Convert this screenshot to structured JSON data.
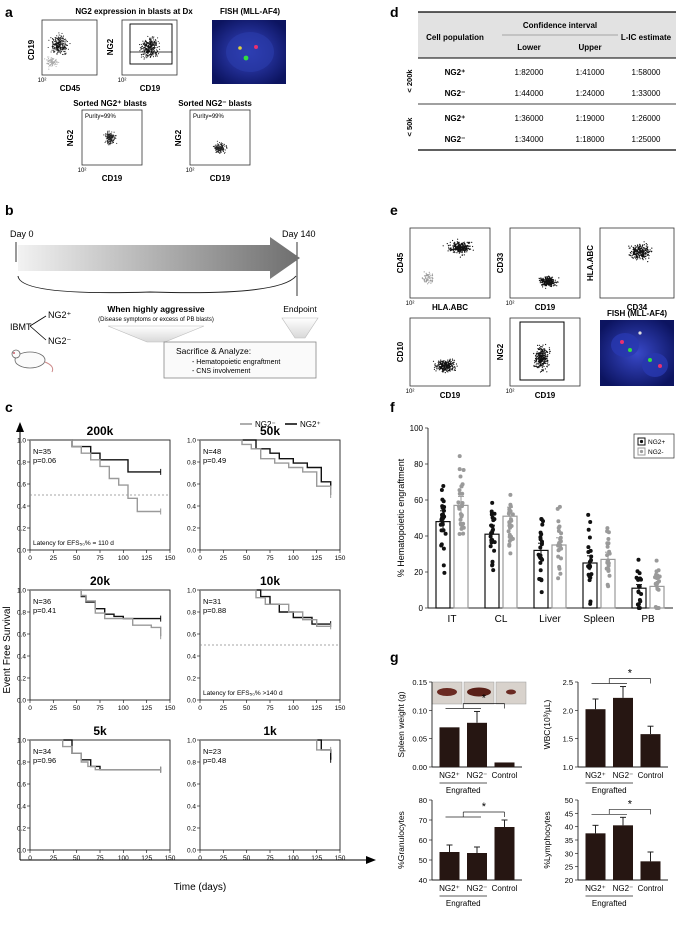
{
  "panels": {
    "a": "a",
    "b": "b",
    "c": "c",
    "d": "d",
    "e": "e",
    "f": "f",
    "g": "g"
  },
  "panel_a": {
    "title_left": "NG2 expression in blasts at Dx",
    "title_right": "FISH (MLL-AF4)",
    "plot1": {
      "ylabel": "CD19",
      "xlabel": "CD45",
      "tick_low": "10²",
      "tick_high": "10²"
    },
    "plot2": {
      "ylabel": "NG2",
      "xlabel": "CD19",
      "tick_low": "10²",
      "tick_high": "10²"
    },
    "sorted_pos_title": "Sorted NG2⁺ blasts",
    "sorted_neg_title": "Sorted NG2⁻ blasts",
    "sorted_pos": {
      "ylabel": "NG2",
      "xlabel": "CD19",
      "purity": "Purity=99%",
      "tick_low": "10²",
      "tick_high": "10²"
    },
    "sorted_neg": {
      "ylabel": "NG2",
      "xlabel": "CD19",
      "purity": "Purity=99%",
      "tick_low": "10²",
      "tick_high": "10²"
    }
  },
  "panel_b": {
    "day0": "Day 0",
    "day140": "Day 140",
    "ibmt": "IBMT",
    "ng2pos": "NG2⁺",
    "ng2neg": "NG2⁻",
    "aggressive": "When highly aggressive",
    "aggressive_sub": "(Disease symptoms or excess of PB blasts)",
    "endpoint": "Endpoint",
    "sacrifice": "Sacrifice & Analyze:",
    "item1": "- Hematopoietic engraftment",
    "item2": "- CNS involvement"
  },
  "panel_c": {
    "legend_neg": "NG2⁻",
    "legend_pos": "NG2⁺",
    "ylabel": "Event Free Survival",
    "xlabel": "Time (days)",
    "y_ticks": [
      "0.0",
      "0.2",
      "0.4",
      "0.6",
      "0.8",
      "1.0"
    ],
    "x_ticks": [
      "0",
      "25",
      "50",
      "75",
      "100",
      "125",
      "150"
    ],
    "plots": [
      {
        "title": "200k",
        "n": "N=35",
        "p": "p=0.06",
        "note": "Latency for EFS₅₀% = 110 d"
      },
      {
        "title": "50k",
        "n": "N=48",
        "p": "p=0.49",
        "note": ""
      },
      {
        "title": "20k",
        "n": "N=36",
        "p": "p=0.41",
        "note": ""
      },
      {
        "title": "10k",
        "n": "N=31",
        "p": "p=0.88",
        "note": "Latency for EFS₅₀% >140 d"
      },
      {
        "title": "5k",
        "n": "N=34",
        "p": "p=0.96",
        "note": ""
      },
      {
        "title": "1k",
        "n": "N=23",
        "p": "p=0.48",
        "note": ""
      }
    ]
  },
  "chart_data": [
    {
      "type": "line",
      "title": "200k",
      "xlim": [
        0,
        150
      ],
      "ylim": [
        0,
        1
      ],
      "series": [
        {
          "name": "NG2⁺",
          "x": [
            0,
            35,
            45,
            55,
            65,
            75,
            95,
            105,
            140
          ],
          "y": [
            1.0,
            1.0,
            0.94,
            0.94,
            0.88,
            0.82,
            0.82,
            0.71,
            0.71
          ]
        },
        {
          "name": "NG2⁻",
          "x": [
            0,
            35,
            45,
            55,
            65,
            75,
            85,
            95,
            105,
            115,
            140
          ],
          "y": [
            1.0,
            1.0,
            0.94,
            0.88,
            0.82,
            0.76,
            0.65,
            0.59,
            0.47,
            0.35,
            0.35
          ]
        }
      ]
    },
    {
      "type": "line",
      "title": "50k",
      "xlim": [
        0,
        150
      ],
      "ylim": [
        0,
        1
      ],
      "series": [
        {
          "name": "NG2⁺",
          "x": [
            0,
            50,
            60,
            75,
            85,
            100,
            115,
            130,
            140
          ],
          "y": [
            1.0,
            1.0,
            0.92,
            0.88,
            0.83,
            0.79,
            0.75,
            0.62,
            0.58
          ]
        },
        {
          "name": "NG2⁻",
          "x": [
            0,
            45,
            55,
            65,
            80,
            95,
            110,
            125,
            140
          ],
          "y": [
            1.0,
            0.96,
            0.92,
            0.83,
            0.79,
            0.75,
            0.71,
            0.58,
            0.5
          ]
        }
      ]
    },
    {
      "type": "line",
      "title": "20k",
      "xlim": [
        0,
        150
      ],
      "ylim": [
        0,
        1
      ],
      "series": [
        {
          "name": "NG2⁺",
          "x": [
            0,
            50,
            55,
            60,
            70,
            80,
            90,
            100,
            140
          ],
          "y": [
            1.0,
            1.0,
            0.94,
            0.89,
            0.83,
            0.78,
            0.76,
            0.74,
            0.74
          ]
        },
        {
          "name": "NG2⁻",
          "x": [
            0,
            48,
            55,
            60,
            70,
            80,
            95,
            110,
            130,
            140
          ],
          "y": [
            1.0,
            1.0,
            0.95,
            0.9,
            0.79,
            0.74,
            0.74,
            0.68,
            0.66,
            0.58
          ]
        }
      ]
    },
    {
      "type": "line",
      "title": "10k",
      "xlim": [
        0,
        150
      ],
      "ylim": [
        0,
        1
      ],
      "series": [
        {
          "name": "NG2⁺",
          "x": [
            0,
            55,
            65,
            75,
            85,
            100,
            120,
            140
          ],
          "y": [
            1.0,
            1.0,
            0.94,
            0.87,
            0.8,
            0.75,
            0.69,
            0.69
          ]
        },
        {
          "name": "NG2⁻",
          "x": [
            0,
            50,
            60,
            70,
            80,
            95,
            110,
            125,
            140
          ],
          "y": [
            1.0,
            1.0,
            0.93,
            0.87,
            0.87,
            0.8,
            0.73,
            0.67,
            0.67
          ]
        }
      ]
    },
    {
      "type": "line",
      "title": "5k",
      "xlim": [
        0,
        150
      ],
      "ylim": [
        0,
        1
      ],
      "series": [
        {
          "name": "NG2⁺",
          "x": [
            0,
            30,
            45,
            55,
            65,
            75,
            140
          ],
          "y": [
            1.0,
            1.0,
            0.88,
            0.82,
            0.76,
            0.73,
            0.73
          ]
        },
        {
          "name": "NG2⁻",
          "x": [
            0,
            35,
            45,
            55,
            62,
            70,
            140
          ],
          "y": [
            1.0,
            0.94,
            0.88,
            0.8,
            0.76,
            0.73,
            0.73
          ]
        }
      ]
    },
    {
      "type": "line",
      "title": "1k",
      "xlim": [
        0,
        150
      ],
      "ylim": [
        0,
        1
      ],
      "series": [
        {
          "name": "NG2⁺",
          "x": [
            0,
            120,
            130,
            140
          ],
          "y": [
            1.0,
            1.0,
            0.91,
            0.82
          ]
        },
        {
          "name": "NG2⁻",
          "x": [
            0,
            110,
            125,
            140
          ],
          "y": [
            1.0,
            1.0,
            0.91,
            0.91
          ]
        }
      ]
    },
    {
      "type": "bar",
      "ylabel": "% Hematopoietic engraftment",
      "ylim": [
        0,
        100
      ],
      "categories": [
        "IT",
        "CL",
        "Liver",
        "Spleen",
        "PB"
      ],
      "y_ticks": [
        "0",
        "20",
        "40",
        "60",
        "80",
        "100"
      ],
      "series": [
        {
          "name": "NG2+",
          "values": [
            48,
            41,
            32,
            25,
            11
          ],
          "errors": [
            6,
            5,
            4,
            4,
            2
          ]
        },
        {
          "name": "NG2-",
          "values": [
            57,
            51,
            35,
            27,
            12
          ],
          "errors": [
            5,
            5,
            4,
            4,
            2
          ]
        }
      ]
    },
    {
      "type": "bar",
      "ylabel": "Spleen weight (g)",
      "ylim": [
        0,
        0.15
      ],
      "categories": [
        "NG2⁺",
        "NG2⁻",
        "Control"
      ],
      "values": [
        0.07,
        0.078,
        0.008
      ],
      "errors": [
        0,
        0.02,
        0
      ],
      "y_ticks": [
        "0.00",
        "0.05",
        "0.10",
        "0.15"
      ],
      "sig": "*",
      "group_label": "Engrafted"
    },
    {
      "type": "bar",
      "ylabel": "WBC(10³/µL)",
      "ylim": [
        1.0,
        2.5
      ],
      "categories": [
        "NG2⁺",
        "NG2⁻",
        "Control"
      ],
      "values": [
        2.02,
        2.22,
        1.58
      ],
      "errors": [
        0.18,
        0.2,
        0.14
      ],
      "y_ticks": [
        "1.0",
        "1.5",
        "2.0",
        "2.5"
      ],
      "sig": "*",
      "group_label": "Engrafted"
    },
    {
      "type": "bar",
      "ylabel": "%Granulocytes",
      "ylim": [
        40,
        80
      ],
      "categories": [
        "NG2⁺",
        "NG2⁻",
        "Control"
      ],
      "values": [
        54,
        53.5,
        66.5
      ],
      "errors": [
        3.5,
        3,
        3.5
      ],
      "y_ticks": [
        "40",
        "50",
        "60",
        "70",
        "80"
      ],
      "sig": "*",
      "group_label": "Engrafted"
    },
    {
      "type": "bar",
      "ylabel": "%Lymphocytes",
      "ylim": [
        20,
        50
      ],
      "categories": [
        "NG2⁺",
        "NG2⁻",
        "Control"
      ],
      "values": [
        37.5,
        40.5,
        27
      ],
      "errors": [
        3,
        3,
        3.5
      ],
      "y_ticks": [
        "20",
        "25",
        "30",
        "35",
        "40",
        "45",
        "50"
      ],
      "sig": "*",
      "group_label": "Engrafted"
    }
  ],
  "panel_d": {
    "col_population": "Cell population",
    "col_ci": "Confidence interval",
    "col_lower": "Lower",
    "col_upper": "Upper",
    "col_lic": "L-IC estimate",
    "groups": [
      {
        "label": "< 200k",
        "rows": [
          {
            "pop": "NG2⁺",
            "lower": "1:82000",
            "upper": "1:41000",
            "lic": "1:58000"
          },
          {
            "pop": "NG2⁻",
            "lower": "1:44000",
            "upper": "1:24000",
            "lic": "1:33000"
          }
        ]
      },
      {
        "label": "< 50k",
        "rows": [
          {
            "pop": "NG2⁺",
            "lower": "1:36000",
            "upper": "1:19000",
            "lic": "1:26000"
          },
          {
            "pop": "NG2⁻",
            "lower": "1:34000",
            "upper": "1:18000",
            "lic": "1:25000"
          }
        ]
      }
    ]
  },
  "panel_e": {
    "p1": {
      "ylabel": "CD45",
      "xlabel": "HLA.ABC"
    },
    "p2": {
      "ylabel": "CD33",
      "xlabel": "CD19"
    },
    "p3": {
      "ylabel": "HLA.ABC",
      "xlabel": "CD34"
    },
    "p4": {
      "ylabel": "CD10",
      "xlabel": "CD19"
    },
    "p5": {
      "ylabel": "NG2",
      "xlabel": "CD19"
    },
    "fish": "FISH (MLL-AF4)",
    "tick_low": "10²",
    "tick_high": "10²"
  },
  "panel_f": {
    "legend_pos": "NG2+",
    "legend_neg": "NG2-"
  },
  "colors": {
    "ng2pos": "#111111",
    "ng2neg": "#9a9a9a",
    "bar": "#261612",
    "fish_bg": "#1a2a9a"
  }
}
